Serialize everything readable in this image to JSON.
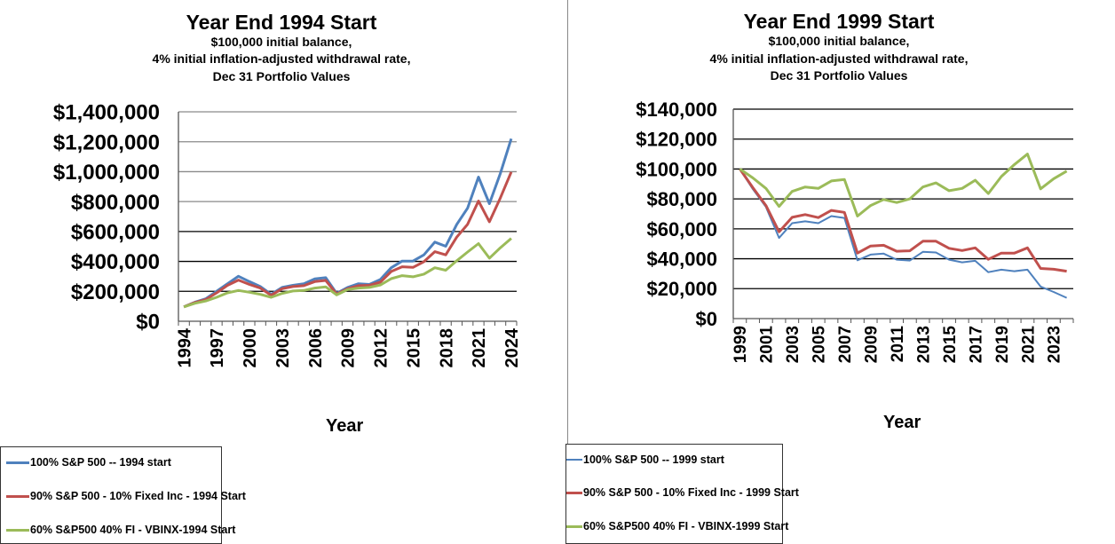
{
  "chart_data": [
    {
      "type": "line",
      "title": "Year End 1994 Start",
      "subtitle": [
        "$100,000 initial balance,",
        "4%  initial inflation-adjusted  withdrawal rate,",
        "Dec 31 Portfolio Values"
      ],
      "xlabel": "Year",
      "ylabel": "",
      "ylim": [
        0,
        1400000
      ],
      "y_ticks": [
        "$0",
        "$200,000",
        "$400,000",
        "$600,000",
        "$800,000",
        "$1,000,000",
        "$1,200,000",
        "$1,400,000"
      ],
      "y_tick_values": [
        0,
        200000,
        400000,
        600000,
        800000,
        1000000,
        1200000,
        1400000
      ],
      "grid": true,
      "legend": "bottom-left",
      "categories": [
        1994,
        1995,
        1996,
        1997,
        1998,
        1999,
        2000,
        2001,
        2002,
        2003,
        2004,
        2005,
        2006,
        2007,
        2008,
        2009,
        2010,
        2011,
        2012,
        2013,
        2014,
        2015,
        2016,
        2017,
        2018,
        2019,
        2020,
        2021,
        2022,
        2023,
        2024
      ],
      "x_tick_labels": [
        "1994",
        "1997",
        "2000",
        "2003",
        "2006",
        "2009",
        "2012",
        "2015",
        "2018",
        "2021",
        "2024"
      ],
      "series": [
        {
          "name": "100%  S&P 500 -- 1994 start",
          "color": "#4F81BD",
          "values": [
            96000,
            127000,
            150000,
            200000,
            251000,
            301000,
            265000,
            232000,
            180000,
            226000,
            240000,
            251000,
            283000,
            291000,
            186000,
            226000,
            251000,
            246000,
            279000,
            358000,
            402000,
            402000,
            444000,
            529000,
            501000,
            646000,
            756000,
            964000,
            786000,
            988000,
            1220000
          ]
        },
        {
          "name": "90%  S&P 500 - 10%  Fixed Inc - 1994 Start",
          "color": "#C0504D",
          "values": [
            96000,
            125000,
            145000,
            190000,
            240000,
            275000,
            246000,
            222000,
            174000,
            218000,
            232000,
            238000,
            265000,
            273000,
            182000,
            218000,
            238000,
            240000,
            261000,
            333000,
            364000,
            360000,
            398000,
            465000,
            444000,
            562000,
            648000,
            804000,
            665000,
            824000,
            998000
          ]
        },
        {
          "name": "60%  S&P500 40% FI - VBINX-1994 Start",
          "color": "#9BBB59",
          "values": [
            96000,
            120000,
            135000,
            160000,
            190000,
            206000,
            194000,
            180000,
            160000,
            186000,
            202000,
            206000,
            222000,
            230000,
            176000,
            212000,
            222000,
            226000,
            242000,
            285000,
            305000,
            297000,
            315000,
            358000,
            341000,
            404000,
            463000,
            519000,
            422000,
            491000,
            554000
          ]
        }
      ]
    },
    {
      "type": "line",
      "title": "Year End 1999 Start",
      "subtitle": [
        "$100,000 initial balance,",
        "4%  initial inflation-adjusted  withdrawal rate,",
        "Dec 31 Portfolio Values"
      ],
      "xlabel": "Year",
      "ylabel": "",
      "ylim": [
        0,
        140000
      ],
      "y_ticks": [
        "$0",
        "$20,000",
        "$40,000",
        "$60,000",
        "$80,000",
        "$100,000",
        "$120,000",
        "$140,000"
      ],
      "y_tick_values": [
        0,
        20000,
        40000,
        60000,
        80000,
        100000,
        120000,
        140000
      ],
      "grid": true,
      "legend": "bottom-left",
      "categories": [
        1999,
        2000,
        2001,
        2002,
        2003,
        2004,
        2005,
        2006,
        2007,
        2008,
        2009,
        2010,
        2011,
        2012,
        2013,
        2014,
        2015,
        2016,
        2017,
        2018,
        2019,
        2020,
        2021,
        2022,
        2023,
        2024
      ],
      "x_tick_labels": [
        "1999",
        "2001",
        "2003",
        "2005",
        "2007",
        "2009",
        "2011",
        "2013",
        "2015",
        "2017",
        "2019",
        "2021",
        "2023"
      ],
      "series": [
        {
          "name": "100%  S&P 500 -- 1999 start",
          "color": "#4F81BD",
          "values": [
            100000,
            86500,
            74600,
            53900,
            63800,
            65000,
            63800,
            68500,
            67300,
            39000,
            42800,
            43400,
            39400,
            38800,
            44600,
            44200,
            39400,
            37600,
            38600,
            31000,
            32700,
            31700,
            32700,
            21400,
            17800,
            13900
          ]
        },
        {
          "name": "90%  S&P 500 - 10% Fixed Inc - 1999 Start",
          "color": "#C0504D",
          "values": [
            100000,
            87500,
            75600,
            58000,
            67700,
            69500,
            67500,
            72300,
            71000,
            43800,
            48500,
            49000,
            45000,
            45300,
            51700,
            51700,
            47000,
            45500,
            47300,
            39600,
            43800,
            43800,
            47300,
            33500,
            33000,
            31700
          ]
        },
        {
          "name": "60%  S&P500 40% FI - VBINX-1999 Start",
          "color": "#9BBB59",
          "values": [
            100000,
            94000,
            87000,
            75000,
            85000,
            88000,
            87000,
            92000,
            93000,
            68500,
            75600,
            79600,
            77600,
            80000,
            88000,
            90700,
            85500,
            87000,
            92500,
            83600,
            95000,
            103000,
            110000,
            86700,
            93500,
            98600
          ]
        }
      ]
    }
  ]
}
